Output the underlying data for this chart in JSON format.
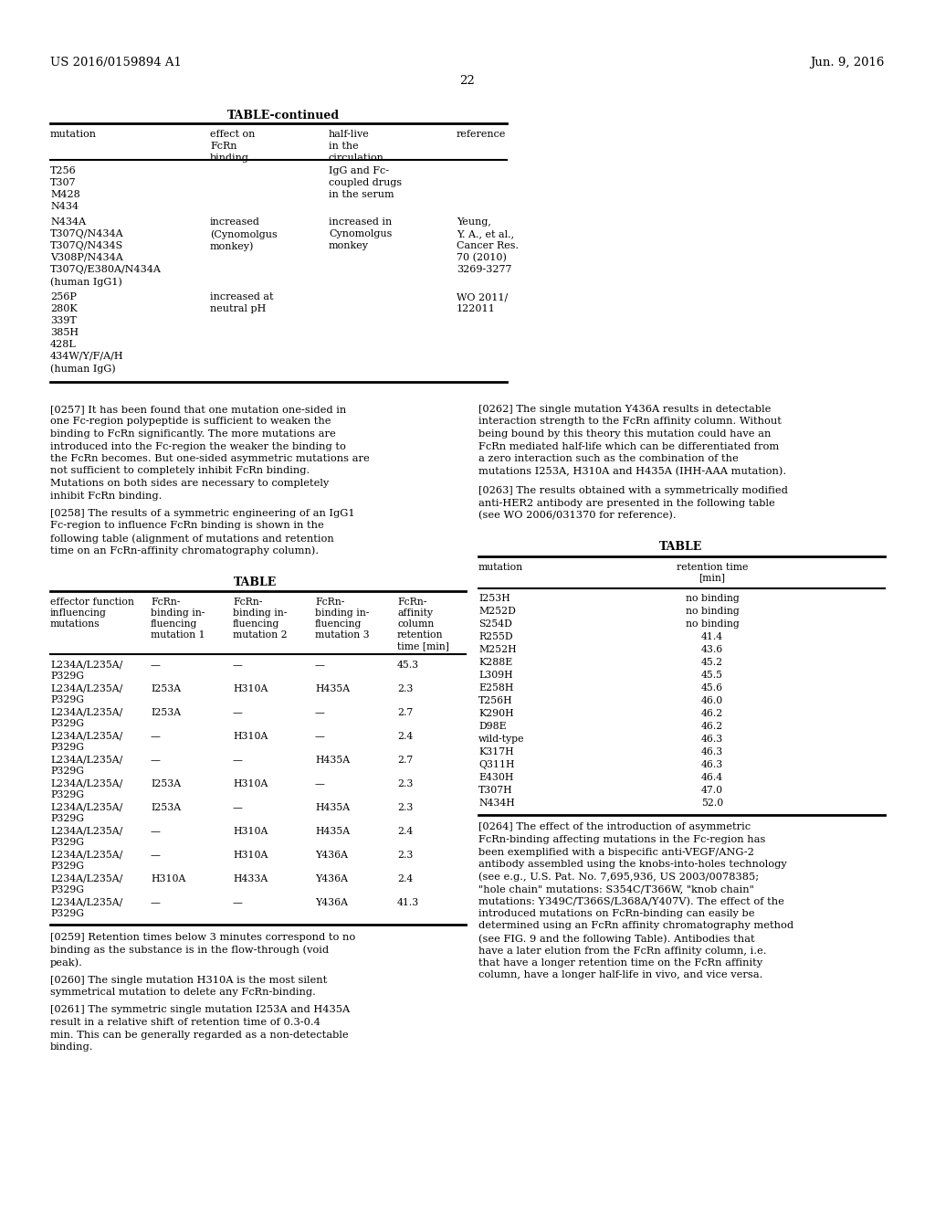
{
  "header_left": "US 2016/0159894 A1",
  "header_right": "Jun. 9, 2016",
  "page_number": "22",
  "bg_color": "#ffffff",
  "table_continued_title": "TABLE-continued",
  "paragraph_257": "[0257]   It has been found that one mutation one-sided in one Fc-region polypeptide is sufficient to weaken the binding to FcRn significantly. The more mutations are introduced into the Fc-region the weaker the binding to the FcRn becomes. But one-sided asymmetric mutations are not sufficient to completely inhibit FcRn binding. Mutations on both sides are necessary to completely inhibit FcRn binding.",
  "paragraph_258": "[0258]   The results of a symmetric engineering of an IgG1 Fc-region to influence FcRn binding is shown in the following table (alignment of mutations and retention time on an FcRn-affinity chromatography column).",
  "paragraph_262": "[0262]   The single mutation Y436A results in detectable interaction strength to the FcRn affinity column. Without being bound by this theory this mutation could have an FcRn mediated half-life which can be differentiated from a zero interaction such as the combination of the mutations I253A, H310A and H435A (IHH-AAA mutation).",
  "paragraph_263": "[0263]   The results obtained with a symmetrically modified anti-HER2 antibody are presented in the following table (see WO 2006/031370 for reference).",
  "table1_title": "TABLE",
  "table1_headers": [
    "effector function\ninfluencing\nmutations",
    "FcRn-\nbinding in-\nfluencing\nmutation 1",
    "FcRn-\nbinding in-\nfluencing\nmutation 2",
    "FcRn-\nbinding in-\nfluencing\nmutation 3",
    "FcRn-\naffinity\ncolumn\nretention\ntime [min]"
  ],
  "table1_rows": [
    [
      "L234A/L235A/\nP329G",
      "—",
      "—",
      "—",
      "45.3"
    ],
    [
      "L234A/L235A/\nP329G",
      "I253A",
      "H310A",
      "H435A",
      "2.3"
    ],
    [
      "L234A/L235A/\nP329G",
      "I253A",
      "—",
      "—",
      "2.7"
    ],
    [
      "L234A/L235A/\nP329G",
      "—",
      "H310A",
      "—",
      "2.4"
    ],
    [
      "L234A/L235A/\nP329G",
      "—",
      "—",
      "H435A",
      "2.7"
    ],
    [
      "L234A/L235A/\nP329G",
      "I253A",
      "H310A",
      "—",
      "2.3"
    ],
    [
      "L234A/L235A/\nP329G",
      "I253A",
      "—",
      "H435A",
      "2.3"
    ],
    [
      "L234A/L235A/\nP329G",
      "—",
      "H310A",
      "H435A",
      "2.4"
    ],
    [
      "L234A/L235A/\nP329G",
      "—",
      "H310A",
      "Y436A",
      "2.3"
    ],
    [
      "L234A/L235A/\nP329G",
      "H310A",
      "H433A",
      "Y436A",
      "2.4"
    ],
    [
      "L234A/L235A/\nP329G",
      "—",
      "—",
      "Y436A",
      "41.3"
    ]
  ],
  "table2_title": "TABLE",
  "table2_headers": [
    "mutation",
    "retention time\n[min]"
  ],
  "table2_rows": [
    [
      "I253H",
      "no binding"
    ],
    [
      "M252D",
      "no binding"
    ],
    [
      "S254D",
      "no binding"
    ],
    [
      "R255D",
      "41.4"
    ],
    [
      "M252H",
      "43.6"
    ],
    [
      "K288E",
      "45.2"
    ],
    [
      "L309H",
      "45.5"
    ],
    [
      "E258H",
      "45.6"
    ],
    [
      "T256H",
      "46.0"
    ],
    [
      "K290H",
      "46.2"
    ],
    [
      "D98E",
      "46.2"
    ],
    [
      "wild-type",
      "46.3"
    ],
    [
      "K317H",
      "46.3"
    ],
    [
      "Q311H",
      "46.3"
    ],
    [
      "E430H",
      "46.4"
    ],
    [
      "T307H",
      "47.0"
    ],
    [
      "N434H",
      "52.0"
    ]
  ],
  "paragraph_259": "[0259]   Retention times below 3 minutes correspond to no binding as the substance is in the flow-through (void peak).",
  "paragraph_260": "[0260]   The single mutation H310A is the most silent symmetrical mutation to delete any FcRn-binding.",
  "paragraph_261": "[0261]   The symmetric single mutation I253A and H435A result in a relative shift of retention time of 0.3-0.4 min. This can be generally regarded as a non-detectable binding.",
  "paragraph_264": "[0264]   The effect of the introduction of asymmetric FcRn-binding affecting mutations in the Fc-region has been exemplified with a bispecific anti-VEGF/ANG-2 antibody assembled using the knobs-into-holes technology (see e.g., U.S. Pat. No. 7,695,936, US 2003/0078385; \"hole chain\" mutations: S354C/T366W, \"knob chain\" mutations: Y349C/T366S/L368A/Y407V). The effect of the introduced mutations on FcRn-binding can easily be determined using an FcRn affinity chromatography method (see FIG. 9 and the following Table). Antibodies that have a later elution from the FcRn affinity column, i.e. that have a longer retention time on the FcRn affinity column, have a longer half-life in vivo, and vice versa."
}
